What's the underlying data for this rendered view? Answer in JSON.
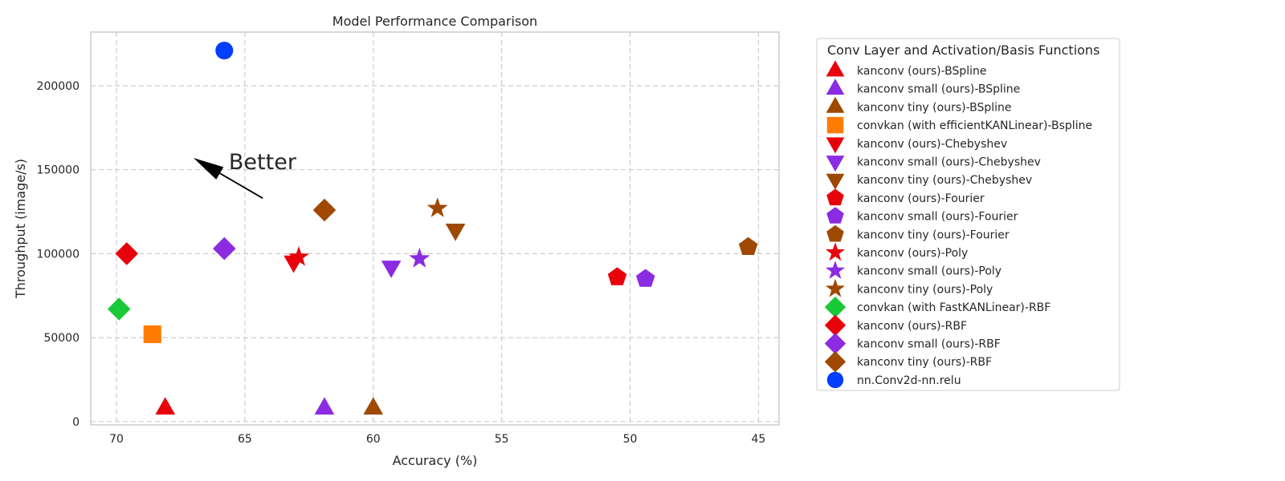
{
  "chart_data": {
    "type": "scatter",
    "title": "Model Performance Comparison",
    "xlabel": "Accuracy (%)",
    "ylabel": "Throughput (image/s)",
    "xlim": [
      71,
      44.2
    ],
    "ylim": [
      -2000,
      232000
    ],
    "x_inverted": true,
    "x_ticks": [
      70,
      65,
      60,
      55,
      50,
      45
    ],
    "y_ticks": [
      0,
      50000,
      100000,
      150000,
      200000
    ],
    "grid": true,
    "legend_title": "Conv Layer and Activation/Basis Functions",
    "legend_position": "outside-right",
    "annotation": {
      "text": "Better",
      "x": 64.3,
      "y": 133000,
      "arrow_to_x": 67,
      "arrow_to_y": 157000
    },
    "series": [
      {
        "name": "kanconv (ours)-BSpline",
        "color": "#e8000b",
        "marker": "triangle-up",
        "points": [
          {
            "x": 68.1,
            "y": 8000
          }
        ]
      },
      {
        "name": "kanconv small (ours)-BSpline",
        "color": "#8b2be2",
        "marker": "triangle-up",
        "points": [
          {
            "x": 61.9,
            "y": 8000
          }
        ]
      },
      {
        "name": "kanconv tiny (ours)-BSpline",
        "color": "#9f4800",
        "marker": "triangle-up",
        "points": [
          {
            "x": 60.0,
            "y": 8000
          }
        ]
      },
      {
        "name": "convkan (with efficientKANLinear)-Bspline",
        "color": "#ff7c00",
        "marker": "square",
        "points": [
          {
            "x": 68.6,
            "y": 52000
          }
        ]
      },
      {
        "name": "kanconv (ours)-Chebyshev",
        "color": "#e8000b",
        "marker": "triangle-down",
        "points": [
          {
            "x": 63.1,
            "y": 95000
          }
        ]
      },
      {
        "name": "kanconv small (ours)-Chebyshev",
        "color": "#8b2be2",
        "marker": "triangle-down",
        "points": [
          {
            "x": 59.3,
            "y": 92000
          }
        ]
      },
      {
        "name": "kanconv tiny (ours)-Chebyshev",
        "color": "#9f4800",
        "marker": "triangle-down",
        "points": [
          {
            "x": 56.8,
            "y": 114000
          }
        ]
      },
      {
        "name": "kanconv (ours)-Fourier",
        "color": "#e8000b",
        "marker": "pentagon",
        "points": [
          {
            "x": 50.5,
            "y": 86000
          }
        ]
      },
      {
        "name": "kanconv small (ours)-Fourier",
        "color": "#8b2be2",
        "marker": "pentagon",
        "points": [
          {
            "x": 49.4,
            "y": 85000
          }
        ]
      },
      {
        "name": "kanconv tiny (ours)-Fourier",
        "color": "#9f4800",
        "marker": "pentagon",
        "points": [
          {
            "x": 45.4,
            "y": 104000
          }
        ]
      },
      {
        "name": "kanconv (ours)-Poly",
        "color": "#e8000b",
        "marker": "star",
        "points": [
          {
            "x": 62.9,
            "y": 98000
          }
        ]
      },
      {
        "name": "kanconv small (ours)-Poly",
        "color": "#8b2be2",
        "marker": "star",
        "points": [
          {
            "x": 58.2,
            "y": 97000
          }
        ]
      },
      {
        "name": "kanconv tiny (ours)-Poly",
        "color": "#9f4800",
        "marker": "star",
        "points": [
          {
            "x": 57.5,
            "y": 127000
          }
        ]
      },
      {
        "name": "convkan (with FastKANLinear)-RBF",
        "color": "#1ac938",
        "marker": "diamond",
        "points": [
          {
            "x": 69.9,
            "y": 67000
          }
        ]
      },
      {
        "name": "kanconv (ours)-RBF",
        "color": "#e8000b",
        "marker": "diamond",
        "points": [
          {
            "x": 69.6,
            "y": 100000
          }
        ]
      },
      {
        "name": "kanconv small (ours)-RBF",
        "color": "#8b2be2",
        "marker": "diamond",
        "points": [
          {
            "x": 65.8,
            "y": 103000
          }
        ]
      },
      {
        "name": "kanconv tiny (ours)-RBF",
        "color": "#9f4800",
        "marker": "diamond",
        "points": [
          {
            "x": 61.9,
            "y": 126000
          }
        ]
      },
      {
        "name": "nn.Conv2d-nn.relu",
        "color": "#023eff",
        "marker": "circle",
        "points": [
          {
            "x": 65.8,
            "y": 221000
          }
        ]
      }
    ]
  }
}
